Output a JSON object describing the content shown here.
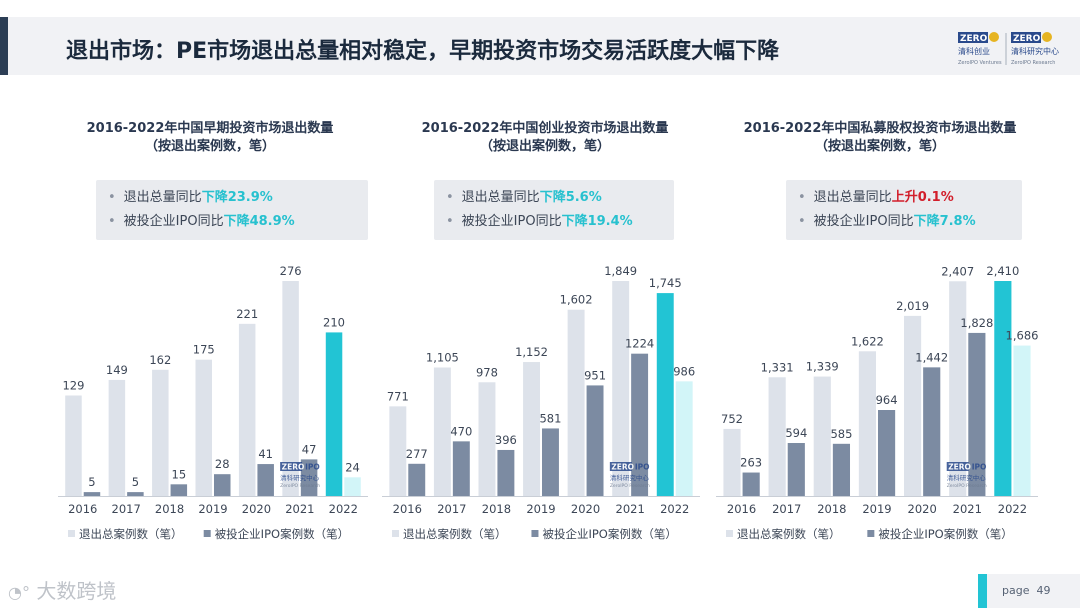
{
  "page": {
    "title": "退出市场：PE市场退出总量相对稳定，早期投资市场交易活跃度大幅下降",
    "page_label": "page",
    "page_number": "49",
    "watermark": "大数跨境",
    "header_logo": {
      "left_top": "ZERO",
      "left_bottom": "清科创业",
      "left_sub": "ZeroIPO Ventures",
      "right_top": "ZERO",
      "right_bottom": "清科研究中心",
      "right_sub": "ZeroIPO Research"
    }
  },
  "colors": {
    "total": "#dde2ea",
    "ipo": "#7c8ba2",
    "hl_total": "#22c4d4",
    "hl_ipo": "#d2f5f8",
    "down": "#27c1cf",
    "up": "#d21e2b"
  },
  "panels": [
    {
      "title_line1": "2016-2022年中国早期投资市场退出数量",
      "title_line2": "（按退出案例数，笔）",
      "summary": [
        {
          "label": "退出总量同比",
          "change": "下降23.9%",
          "dir": "down"
        },
        {
          "label": "被投企业IPO同比",
          "change": "下降48.9%",
          "dir": "down"
        }
      ],
      "watermark_logo": {
        "top": "ZERO",
        "top2": "IPO",
        "name": "清科研究中心",
        "sub": "ZeroIPO Research"
      }
    },
    {
      "title_line1": "2016-2022年中国创业投资市场退出数量",
      "title_line2": "（按退出案例数，笔）",
      "summary": [
        {
          "label": "退出总量同比",
          "change": "下降5.6%",
          "dir": "down"
        },
        {
          "label": "被投企业IPO同比",
          "change": "下降19.4%",
          "dir": "down"
        }
      ],
      "watermark_logo": {
        "top": "ZERO",
        "top2": "IPO",
        "name": "清科研究中心",
        "sub": "ZeroIPO Research"
      }
    },
    {
      "title_line1": "2016-2022年中国私募股权投资市场退出数量",
      "title_line2": "（按退出案例数，笔）",
      "summary": [
        {
          "label": "退出总量同比",
          "change": "上升0.1%",
          "dir": "up"
        },
        {
          "label": "被投企业IPO同比",
          "change": "下降7.8%",
          "dir": "down"
        }
      ],
      "watermark_logo": {
        "top": "ZERO",
        "top2": "IPO",
        "name": "清科研究中心",
        "sub": "ZeroIPO Research"
      }
    }
  ],
  "chart_data": [
    {
      "type": "bar",
      "title": "2016-2022年中国早期投资市场退出数量（按退出案例数，笔）",
      "categories": [
        "2016",
        "2017",
        "2018",
        "2019",
        "2020",
        "2021",
        "2022"
      ],
      "series": [
        {
          "name": "退出总案例数（笔）",
          "values": [
            129,
            149,
            162,
            175,
            221,
            276,
            210
          ],
          "labels": [
            "129",
            "149",
            "162",
            "175",
            "221",
            "276",
            "210"
          ]
        },
        {
          "name": "被投企业IPO案例数（笔）",
          "values": [
            5,
            5,
            15,
            28,
            41,
            47,
            24
          ],
          "labels": [
            "5",
            "5",
            "15",
            "28",
            "41",
            "47",
            "24"
          ]
        }
      ],
      "ylim": [
        0,
        276
      ],
      "highlight_last": true,
      "legend": "bottom"
    },
    {
      "type": "bar",
      "title": "2016-2022年中国创业投资市场退出数量（按退出案例数，笔）",
      "categories": [
        "2016",
        "2017",
        "2018",
        "2019",
        "2020",
        "2021",
        "2022"
      ],
      "series": [
        {
          "name": "退出总案例数（笔）",
          "values": [
            771,
            1105,
            978,
            1152,
            1602,
            1849,
            1745
          ],
          "labels": [
            "771",
            "1,105",
            "978",
            "1,152",
            "1,602",
            "1,849",
            "1,745"
          ]
        },
        {
          "name": "被投企业IPO案例数（笔）",
          "values": [
            277,
            470,
            396,
            581,
            951,
            1224,
            986
          ],
          "labels": [
            "277",
            "470",
            "396",
            "581",
            "951",
            "1224",
            "986"
          ]
        }
      ],
      "ylim": [
        0,
        1849
      ],
      "highlight_last": true,
      "legend": "bottom"
    },
    {
      "type": "bar",
      "title": "2016-2022年中国私募股权投资市场退出数量（按退出案例数，笔）",
      "categories": [
        "2016",
        "2017",
        "2018",
        "2019",
        "2020",
        "2021",
        "2022"
      ],
      "series": [
        {
          "name": "退出总案例数（笔）",
          "values": [
            752,
            1331,
            1339,
            1622,
            2019,
            2407,
            2410
          ],
          "labels": [
            "752",
            "1,331",
            "1,339",
            "1,622",
            "2,019",
            "2,407",
            "2,410"
          ]
        },
        {
          "name": "被投企业IPO案例数（笔）",
          "values": [
            263,
            594,
            585,
            964,
            1442,
            1828,
            1686
          ],
          "labels": [
            "263",
            "594",
            "585",
            "964",
            "1,442",
            "1,828",
            "1,686"
          ]
        }
      ],
      "ylim": [
        0,
        2410
      ],
      "highlight_last": true,
      "legend": "bottom"
    }
  ]
}
